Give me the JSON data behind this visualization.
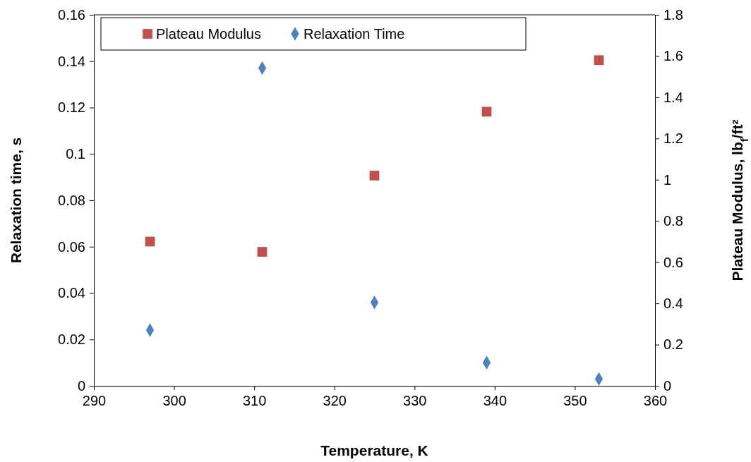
{
  "chart_data": {
    "type": "scatter",
    "xlabel": "Temperature, K",
    "ylabel": "Relaxation time, s",
    "y2label": "Plateau Modulus, lb$_{f}$/ft²",
    "xlim": [
      290,
      360
    ],
    "xticks": [
      290,
      300,
      310,
      320,
      330,
      340,
      350,
      360
    ],
    "ylim": [
      0,
      0.16
    ],
    "yticks": [
      0,
      0.02,
      0.04,
      0.06,
      0.08,
      0.1,
      0.12,
      0.14,
      0.16
    ],
    "y2lim": [
      0,
      1.8
    ],
    "y2ticks": [
      0,
      0.2,
      0.4,
      0.6,
      0.8,
      1,
      1.2,
      1.4,
      1.6,
      1.8
    ],
    "legend": "top left",
    "grid": false,
    "series": [
      {
        "name": "Plateau Modulus",
        "color": "#c0504d",
        "marker": "square",
        "axis": "y2",
        "x": [
          297,
          311,
          325,
          339,
          353
        ],
        "values": [
          0.7,
          0.65,
          1.02,
          1.33,
          1.58
        ]
      },
      {
        "name": "Relaxation Time",
        "color": "#4f81bd",
        "marker": "diamond",
        "x": [
          297,
          311,
          325,
          339,
          353
        ],
        "values": [
          0.024,
          0.137,
          0.036,
          0.01,
          0.003
        ]
      }
    ]
  }
}
